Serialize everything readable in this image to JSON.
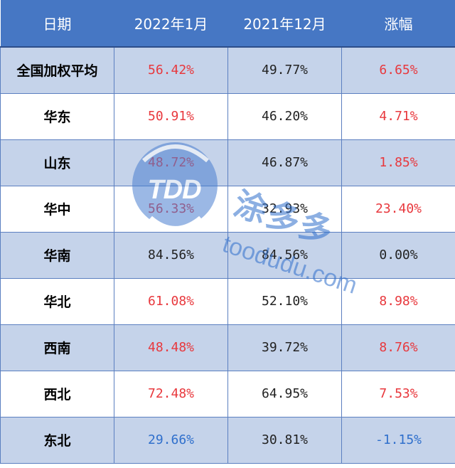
{
  "table": {
    "headers": [
      "日期",
      "2022年1月",
      "2021年12月",
      "涨幅"
    ],
    "rows": [
      {
        "region": "全国加权平均",
        "jan2022": "56.42%",
        "dec2021": "49.77%",
        "change": "6.65%"
      },
      {
        "region": "华东",
        "jan2022": "50.91%",
        "dec2021": "46.20%",
        "change": "4.71%"
      },
      {
        "region": "山东",
        "jan2022": "48.72%",
        "dec2021": "46.87%",
        "change": "1.85%"
      },
      {
        "region": "华中",
        "jan2022": "56.33%",
        "dec2021": "32.93%",
        "change": "23.40%"
      },
      {
        "region": "华南",
        "jan2022": "84.56%",
        "dec2021": "84.56%",
        "change": "0.00%"
      },
      {
        "region": "华北",
        "jan2022": "61.08%",
        "dec2021": "52.10%",
        "change": "8.98%"
      },
      {
        "region": "西南",
        "jan2022": "48.48%",
        "dec2021": "39.72%",
        "change": "8.76%"
      },
      {
        "region": "西北",
        "jan2022": "72.48%",
        "dec2021": "64.95%",
        "change": "7.53%"
      },
      {
        "region": "东北",
        "jan2022": "29.66%",
        "dec2021": "30.81%",
        "change": "-1.15%"
      }
    ]
  },
  "colors": {
    "header_bg": "#4677c4",
    "row_shade": "#c5d3ea",
    "increase": "#e8383d",
    "decrease": "#2f6fcc",
    "neutral": "#222222"
  },
  "watermark": {
    "logo_text": "TDD",
    "brand": "涂多多",
    "url": "toodudu.com"
  }
}
